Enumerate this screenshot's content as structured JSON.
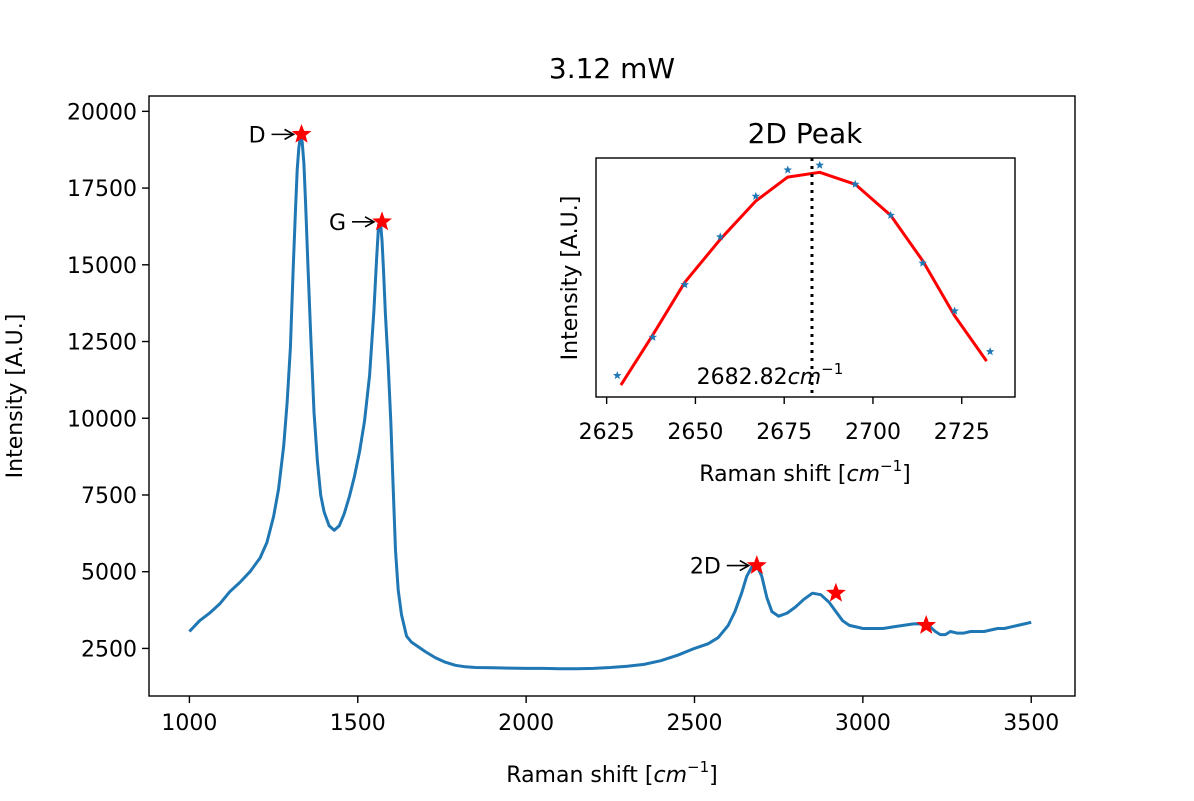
{
  "chart_data": {
    "type": "line",
    "title": "3.12 mW",
    "xlabel_text": "Raman shift [",
    "xlabel_unit": "cm",
    "xlabel_exp": "−1",
    "xlabel_close": "]",
    "ylabel": "Intensity [A.U.]",
    "xlim": [
      880,
      3630
    ],
    "ylim": [
      950,
      20500
    ],
    "xticks": [
      1000,
      1500,
      2000,
      2500,
      3000,
      3500
    ],
    "xtick_labels": [
      "1000",
      "1500",
      "2000",
      "2500",
      "3000",
      "3500"
    ],
    "yticks": [
      2500,
      5000,
      7500,
      10000,
      12500,
      15000,
      17500,
      20000
    ],
    "ytick_labels": [
      "2500",
      "5000",
      "7500",
      "10000",
      "12500",
      "15000",
      "17500",
      "20000"
    ],
    "line_color": "#1f77b4",
    "marker_color": "#ff0000",
    "series": [
      {
        "x": [
          1000,
          1030,
          1060,
          1090,
          1120,
          1150,
          1180,
          1210,
          1230,
          1250,
          1265,
          1280,
          1290,
          1300,
          1308,
          1315,
          1320,
          1325,
          1330,
          1335,
          1340,
          1345,
          1352,
          1360,
          1370,
          1380,
          1390,
          1400,
          1415,
          1430,
          1445,
          1460,
          1475,
          1490,
          1505,
          1520,
          1535,
          1548,
          1556,
          1562,
          1568,
          1572,
          1576,
          1582,
          1590,
          1598,
          1605,
          1612,
          1620,
          1630,
          1645,
          1660,
          1680,
          1700,
          1730,
          1760,
          1790,
          1820,
          1850,
          1900,
          1950,
          2000,
          2050,
          2100,
          2150,
          2200,
          2250,
          2300,
          2350,
          2400,
          2450,
          2500,
          2540,
          2570,
          2600,
          2620,
          2640,
          2655,
          2670,
          2685,
          2700,
          2715,
          2730,
          2750,
          2775,
          2800,
          2825,
          2850,
          2875,
          2900,
          2920,
          2940,
          2960,
          2980,
          3000,
          3030,
          3060,
          3090,
          3120,
          3150,
          3180,
          3200,
          3215,
          3230,
          3245,
          3260,
          3280,
          3300,
          3320,
          3340,
          3360,
          3380,
          3400,
          3420,
          3440,
          3460,
          3480,
          3500
        ],
        "y": [
          3050,
          3400,
          3650,
          3950,
          4350,
          4650,
          5000,
          5450,
          5950,
          6800,
          7700,
          9100,
          10500,
          12300,
          14800,
          16800,
          18100,
          18800,
          19200,
          19000,
          18300,
          17000,
          15000,
          12800,
          10200,
          8600,
          7500,
          6950,
          6500,
          6350,
          6500,
          6900,
          7450,
          8100,
          8900,
          9900,
          11400,
          13500,
          15200,
          16300,
          16300,
          15800,
          14900,
          13400,
          11800,
          9900,
          7800,
          5700,
          4400,
          3600,
          2900,
          2700,
          2550,
          2400,
          2200,
          2050,
          1950,
          1900,
          1880,
          1870,
          1860,
          1850,
          1850,
          1840,
          1840,
          1850,
          1880,
          1920,
          1980,
          2100,
          2280,
          2500,
          2650,
          2850,
          3250,
          3700,
          4300,
          4850,
          5150,
          5200,
          4850,
          4150,
          3700,
          3550,
          3650,
          3850,
          4100,
          4300,
          4250,
          4000,
          3700,
          3400,
          3250,
          3200,
          3150,
          3150,
          3150,
          3200,
          3250,
          3300,
          3300,
          3200,
          3050,
          2950,
          2950,
          3050,
          3000,
          3000,
          3050,
          3050,
          3050,
          3100,
          3150,
          3150,
          3200,
          3250,
          3300,
          3350
        ]
      }
    ],
    "peaks": [
      {
        "label": "D",
        "x": 1333,
        "y": 19250
      },
      {
        "label": "G",
        "x": 1572,
        "y": 16400
      },
      {
        "label": "2D",
        "x": 2685,
        "y": 5200
      },
      {
        "label": "",
        "x": 2920,
        "y": 4300
      },
      {
        "label": "",
        "x": 3188,
        "y": 3250
      }
    ],
    "inset": {
      "title": "2D Peak",
      "xlabel_text": "Raman shift [",
      "xlabel_unit": "cm",
      "xlabel_exp": "−1",
      "xlabel_close": "]",
      "ylabel": "Intensity [A.U.]",
      "xlim": [
        2622,
        2740
      ],
      "ylim": [
        0,
        1
      ],
      "xticks": [
        2625,
        2650,
        2675,
        2700,
        2725
      ],
      "xtick_labels": [
        "2625",
        "2650",
        "2675",
        "2700",
        "2725"
      ],
      "peak_value": 2682.82,
      "peak_text": "2682.82",
      "peak_unit": "cm",
      "peak_exp": "−1",
      "points": {
        "x": [
          2628,
          2638,
          2647,
          2657,
          2667,
          2676,
          2685,
          2695,
          2705,
          2714,
          2723,
          2733
        ],
        "y": [
          0.09,
          0.25,
          0.47,
          0.67,
          0.84,
          0.95,
          0.97,
          0.89,
          0.76,
          0.56,
          0.36,
          0.19
        ]
      },
      "fit": {
        "x": [
          2629,
          2638,
          2647,
          2657,
          2667,
          2676,
          2685,
          2695,
          2705,
          2714,
          2723,
          2732
        ],
        "y": [
          0.05,
          0.26,
          0.48,
          0.66,
          0.82,
          0.92,
          0.94,
          0.89,
          0.76,
          0.57,
          0.34,
          0.15
        ]
      },
      "fit_color": "#ff0000",
      "point_color": "#1f77b4"
    }
  }
}
